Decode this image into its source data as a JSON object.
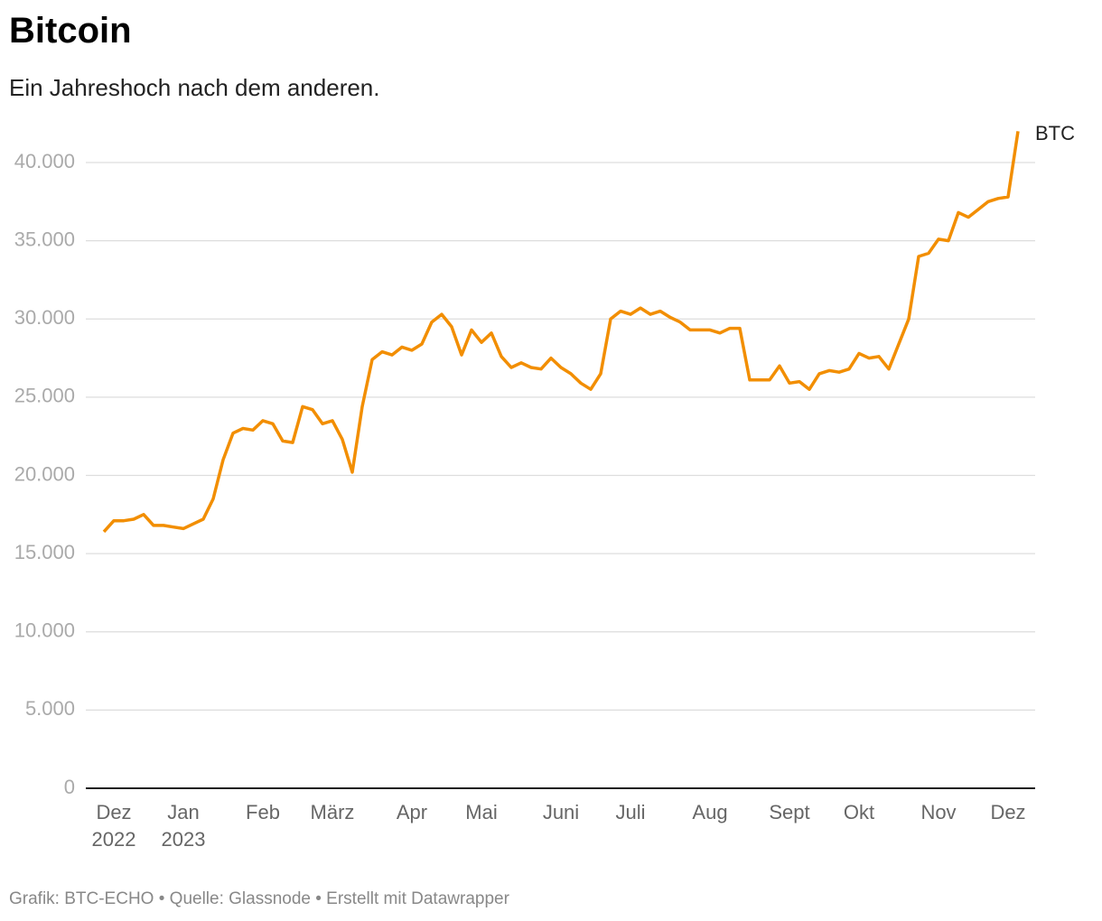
{
  "chart_data": {
    "type": "line",
    "title": "Bitcoin",
    "subtitle": "Ein Jahreshoch nach dem anderen.",
    "source": "Grafik: BTC-ECHO • Quelle: Glassnode • Erstellt mit Datawrapper",
    "categories": [
      null,
      "Dez\n2022",
      null,
      null,
      null,
      null,
      null,
      null,
      "Jan\n2023",
      null,
      null,
      null,
      null,
      null,
      null,
      null,
      "Feb",
      null,
      null,
      null,
      null,
      null,
      null,
      "März",
      null,
      null,
      null,
      null,
      null,
      null,
      null,
      "Apr",
      null,
      null,
      null,
      null,
      null,
      null,
      "Mai",
      null,
      null,
      null,
      null,
      null,
      null,
      null,
      "Juni",
      null,
      null,
      null,
      null,
      null,
      null,
      "Juli",
      null,
      null,
      null,
      null,
      null,
      null,
      null,
      "Aug",
      null,
      null,
      null,
      null,
      null,
      null,
      null,
      "Sept",
      null,
      null,
      null,
      null,
      null,
      null,
      "Okt",
      null,
      null,
      null,
      null,
      null,
      null,
      null,
      "Nov",
      null,
      null,
      null,
      null,
      null,
      null,
      "Dez",
      null
    ],
    "series": [
      {
        "name": "BTC",
        "color": "#f28e00",
        "values": [
          16400,
          17100,
          17100,
          17200,
          17500,
          16800,
          16800,
          16700,
          16600,
          16900,
          17200,
          18500,
          21000,
          22700,
          23000,
          22900,
          23500,
          23300,
          22200,
          22100,
          24400,
          24200,
          23300,
          23500,
          22300,
          20200,
          24400,
          27400,
          27900,
          27700,
          28200,
          28000,
          28400,
          29800,
          30300,
          29500,
          27700,
          29300,
          28500,
          29100,
          27600,
          26900,
          27200,
          26900,
          26800,
          27500,
          26900,
          26500,
          25900,
          25500,
          26500,
          30000,
          30500,
          30300,
          30700,
          30300,
          30500,
          30100,
          29800,
          29300,
          29300,
          29300,
          29100,
          29400,
          29400,
          26100,
          26100,
          26100,
          27000,
          25900,
          26000,
          25500,
          26500,
          26700,
          26600,
          26800,
          27800,
          27500,
          27600,
          26800,
          28400,
          30000,
          34000,
          34200,
          35100,
          35000,
          36800,
          36500,
          37000,
          37500,
          37700,
          37800,
          42000
        ]
      }
    ],
    "ylim": [
      0,
      42000
    ],
    "yticks": [
      0,
      {
        "value": 5000,
        "label": "5.000"
      },
      {
        "value": 10000,
        "label": "10.000"
      },
      {
        "value": 15000,
        "label": "15.000"
      },
      {
        "value": 20000,
        "label": "20.000"
      },
      {
        "value": 25000,
        "label": "25.000"
      },
      {
        "value": 30000,
        "label": "30.000"
      },
      {
        "value": 35000,
        "label": "35.000"
      },
      {
        "value": 40000,
        "label": "40.000"
      }
    ],
    "grid": true
  }
}
